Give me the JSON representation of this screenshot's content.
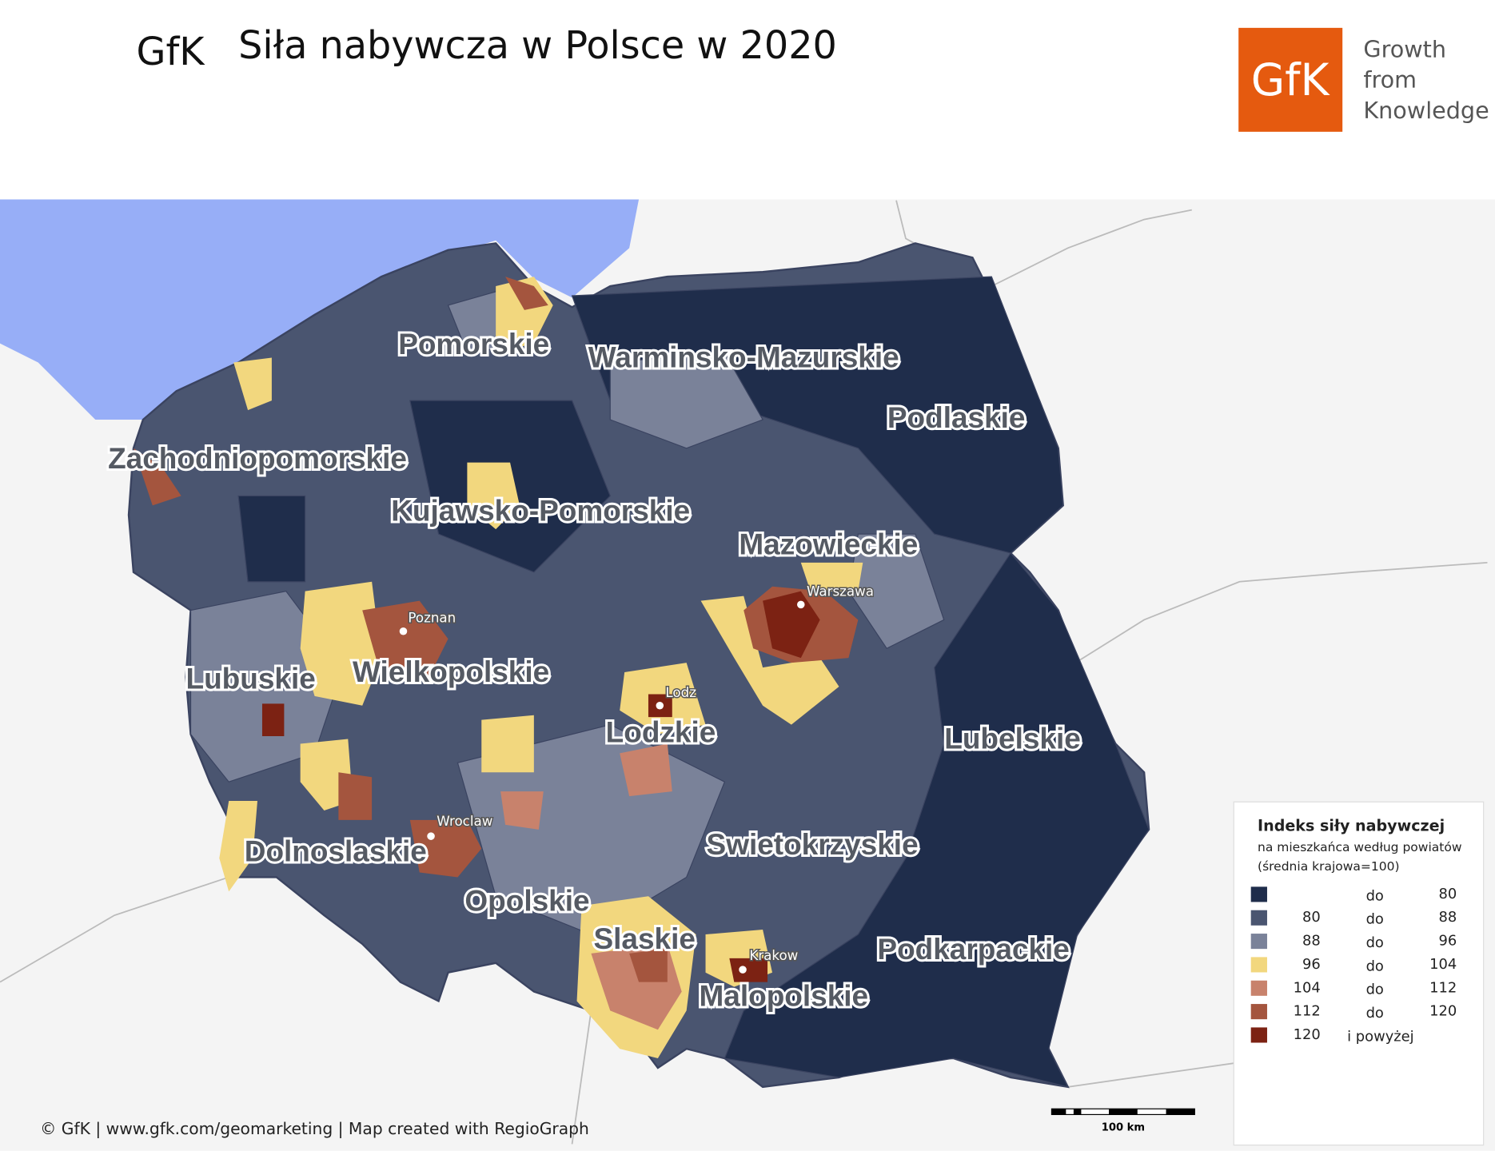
{
  "header": {
    "wordmark": "GfK",
    "title": "Siła nabywcza w Polsce w 2020"
  },
  "logo": {
    "mark": "GfK",
    "tagline": [
      "Growth",
      "from",
      "Knowledge"
    ]
  },
  "map": {
    "regions": [
      "Pomorskie",
      "Warminsko-Mazurskie",
      "Podlaskie",
      "Zachodniopomorskie",
      "Kujawsko-Pomorskie",
      "Mazowieckie",
      "Wielkopolskie",
      "Lubuskie",
      "Lodzkie",
      "Lubelskie",
      "Swietokrzyskie",
      "Dolnoslaskie",
      "Opolskie",
      "Slaskie",
      "Podkarpackie",
      "Malopolskie"
    ],
    "cities": [
      "Warszawa",
      "Poznan",
      "Lodz",
      "Wroclaw",
      "Krakow"
    ]
  },
  "legend": {
    "title": "Indeks siły nabywczej",
    "subtitle": [
      "na mieszkańca według powiatów",
      "(średnia krajowa=100)"
    ],
    "items": [
      {
        "separator": "do",
        "to": 80,
        "color": "#1f2d4b"
      },
      {
        "from": 80,
        "separator": "do",
        "to": 88,
        "color": "#4a5570"
      },
      {
        "from": 88,
        "separator": "do",
        "to": 96,
        "color": "#7a8299"
      },
      {
        "from": 96,
        "separator": "do",
        "to": 104,
        "color": "#f2d77e"
      },
      {
        "from": 104,
        "separator": "do",
        "to": 112,
        "color": "#c8826c"
      },
      {
        "from": 112,
        "separator": "do",
        "to": 120,
        "color": "#a4553e"
      },
      {
        "from": 120,
        "separator": "i powyżej",
        "color": "#7c2213"
      }
    ]
  },
  "scale_bar": "100 km",
  "credit": "© GfK | www.gfk.com/geomarketing | Map created with RegioGraph"
}
